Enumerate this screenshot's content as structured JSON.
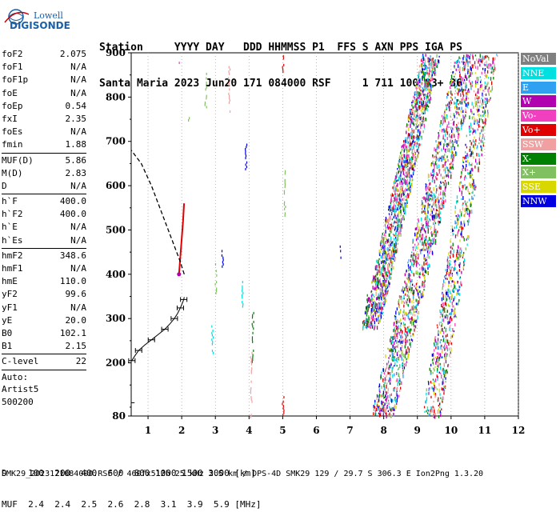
{
  "logo": {
    "line1": "Lowell",
    "line2": "DIGISONDE"
  },
  "header": {
    "row1": "Station     YYYY DAY   DDD HHMMSS P1  FFS S AXN PPS IGA PS",
    "row2": "Santa Maria 2023 Jun20 171 084000 RSF     1 711 100 03+ 36"
  },
  "params": [
    {
      "label": "foF2",
      "value": "2.075"
    },
    {
      "label": "foF1",
      "value": "N/A"
    },
    {
      "label": "foF1p",
      "value": "N/A"
    },
    {
      "label": "foE",
      "value": "N/A"
    },
    {
      "label": "foEp",
      "value": "0.54"
    },
    {
      "label": "fxI",
      "value": "2.35"
    },
    {
      "label": "foEs",
      "value": "N/A"
    },
    {
      "label": "fmin",
      "value": "1.88"
    },
    {
      "sep": true
    },
    {
      "label": "MUF(D)",
      "value": "5.86"
    },
    {
      "label": "M(D)",
      "value": "2.83"
    },
    {
      "label": "D",
      "value": "N/A"
    },
    {
      "sep": true
    },
    {
      "label": "h`F",
      "value": "400.0"
    },
    {
      "label": "h`F2",
      "value": "400.0"
    },
    {
      "label": "h`E",
      "value": "N/A"
    },
    {
      "label": "h`Es",
      "value": "N/A"
    },
    {
      "sep": true
    },
    {
      "label": "hmF2",
      "value": "348.6"
    },
    {
      "label": "hmF1",
      "value": "N/A"
    },
    {
      "label": "hmE",
      "value": "110.0"
    },
    {
      "label": "yF2",
      "value": "99.6"
    },
    {
      "label": "yF1",
      "value": "N/A"
    },
    {
      "label": "yE",
      "value": "20.0"
    },
    {
      "label": "B0",
      "value": "102.1"
    },
    {
      "label": "B1",
      "value": "2.15"
    },
    {
      "sep": true
    },
    {
      "label": "C-level",
      "value": "22"
    },
    {
      "sep": true
    }
  ],
  "autoscaling": [
    "Auto:",
    "Artist5",
    "500200"
  ],
  "legend": [
    {
      "label": "NoVal",
      "color": "#808080"
    },
    {
      "label": "NNE",
      "color": "#00e0e0"
    },
    {
      "label": "E",
      "color": "#30a0f0"
    },
    {
      "label": "W",
      "color": "#b000b0"
    },
    {
      "label": "Vo-",
      "color": "#f040c0"
    },
    {
      "label": "Vo+",
      "color": "#e00000"
    },
    {
      "label": "SSW",
      "color": "#f0a0a0"
    },
    {
      "label": "X-",
      "color": "#008000"
    },
    {
      "label": "X+",
      "color": "#80c060"
    },
    {
      "label": "SSE",
      "color": "#d8d800"
    },
    {
      "label": "NNW",
      "color": "#0000e0"
    }
  ],
  "dmuf": {
    "d_row": "D    100  200  400  600  800 1000 1500 3000 [km]",
    "muf_row": "MUF  2.4  2.4  2.5  2.6  2.8  3.1  3.9  5.9 [MHz]"
  },
  "footer": "SMK29_2023171084000.RSF / 460fx512h 25 kHz 2.5 km / DPS-4D SMK29 129 / 29.7 S 306.3 E Ion2Png 1.3.20",
  "chart_data": {
    "type": "scatter",
    "title": "",
    "xlabel": "",
    "ylabel": "",
    "xlim": [
      0.5,
      12
    ],
    "ylim": [
      80,
      900
    ],
    "xticks": [
      1,
      2,
      3,
      4,
      5,
      6,
      7,
      8,
      9,
      10,
      11,
      12
    ],
    "yticks": [
      80,
      200,
      300,
      400,
      500,
      600,
      700,
      800,
      900
    ],
    "grid": "dotted vertical at integer MHz",
    "legend_position": "right",
    "series": [
      {
        "name": "trace-o-F2",
        "color": "#e00000",
        "x": [
          1.92,
          1.96,
          2.0,
          2.04,
          2.07
        ],
        "y": [
          400,
          440,
          480,
          520,
          560
        ]
      },
      {
        "name": "profile",
        "color": "#000000",
        "x": [
          0.52,
          0.6,
          0.72,
          0.9,
          1.1,
          1.3,
          1.5,
          1.65,
          1.78,
          1.88,
          1.96,
          2.02,
          2.06,
          2.075
        ],
        "y": [
          205,
          215,
          228,
          240,
          252,
          264,
          276,
          288,
          300,
          312,
          324,
          335,
          343,
          348.6
        ]
      },
      {
        "name": "extrapolation",
        "color": "#000000",
        "x": [
          2.075,
          1.95,
          1.7,
          1.4,
          1.1,
          0.8,
          0.5
        ],
        "y": [
          400,
          430,
          480,
          540,
          600,
          650,
          680
        ]
      }
    ],
    "bands": [
      {
        "name": "second-hop",
        "x_start_at_280": 7.55,
        "x_end_at_900": 9.5
      },
      {
        "name": "third-hop",
        "x_start_at_80": 7.9,
        "x_end_at_900": 10.6
      },
      {
        "name": "fourth-hop",
        "x_start_at_80": 9.3,
        "x_end_at_900": 11.2
      }
    ]
  }
}
